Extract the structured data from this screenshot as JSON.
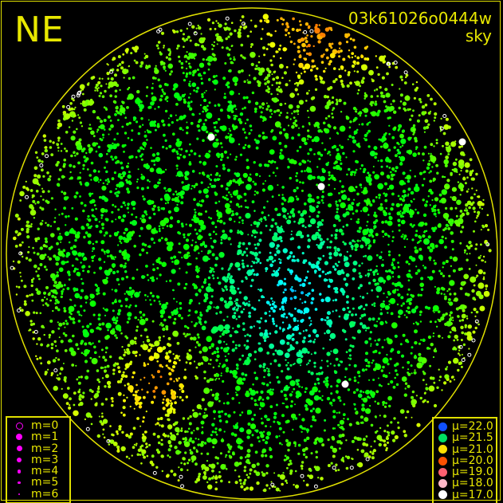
{
  "header": {
    "direction": "NE",
    "frame_id": "03k61026o0444w",
    "map_type": "sky"
  },
  "magnitude_legend": [
    {
      "label": "m=0",
      "size": 4.5,
      "hollow": true
    },
    {
      "label": "m=1",
      "size": 4
    },
    {
      "label": "m=2",
      "size": 3.5
    },
    {
      "label": "m=3",
      "size": 3
    },
    {
      "label": "m=4",
      "size": 2.2
    },
    {
      "label": "m=5",
      "size": 1.8
    },
    {
      "label": "m=6",
      "size": 1.2
    }
  ],
  "magnitude_color": "#ff00ff",
  "brightness_legend": [
    {
      "label": "μ=22.0",
      "color": "#1050ff"
    },
    {
      "label": "μ=21.5",
      "color": "#00e060"
    },
    {
      "label": "μ=21.0",
      "color": "#ffe000"
    },
    {
      "label": "μ=20.0",
      "color": "#ff5000"
    },
    {
      "label": "μ=19.0",
      "color": "#ff6070"
    },
    {
      "label": "μ=18.0",
      "color": "#ffb8c8"
    },
    {
      "label": "μ=17.0",
      "color": "#ffffff"
    }
  ],
  "accent_color": "#e0e000"
}
